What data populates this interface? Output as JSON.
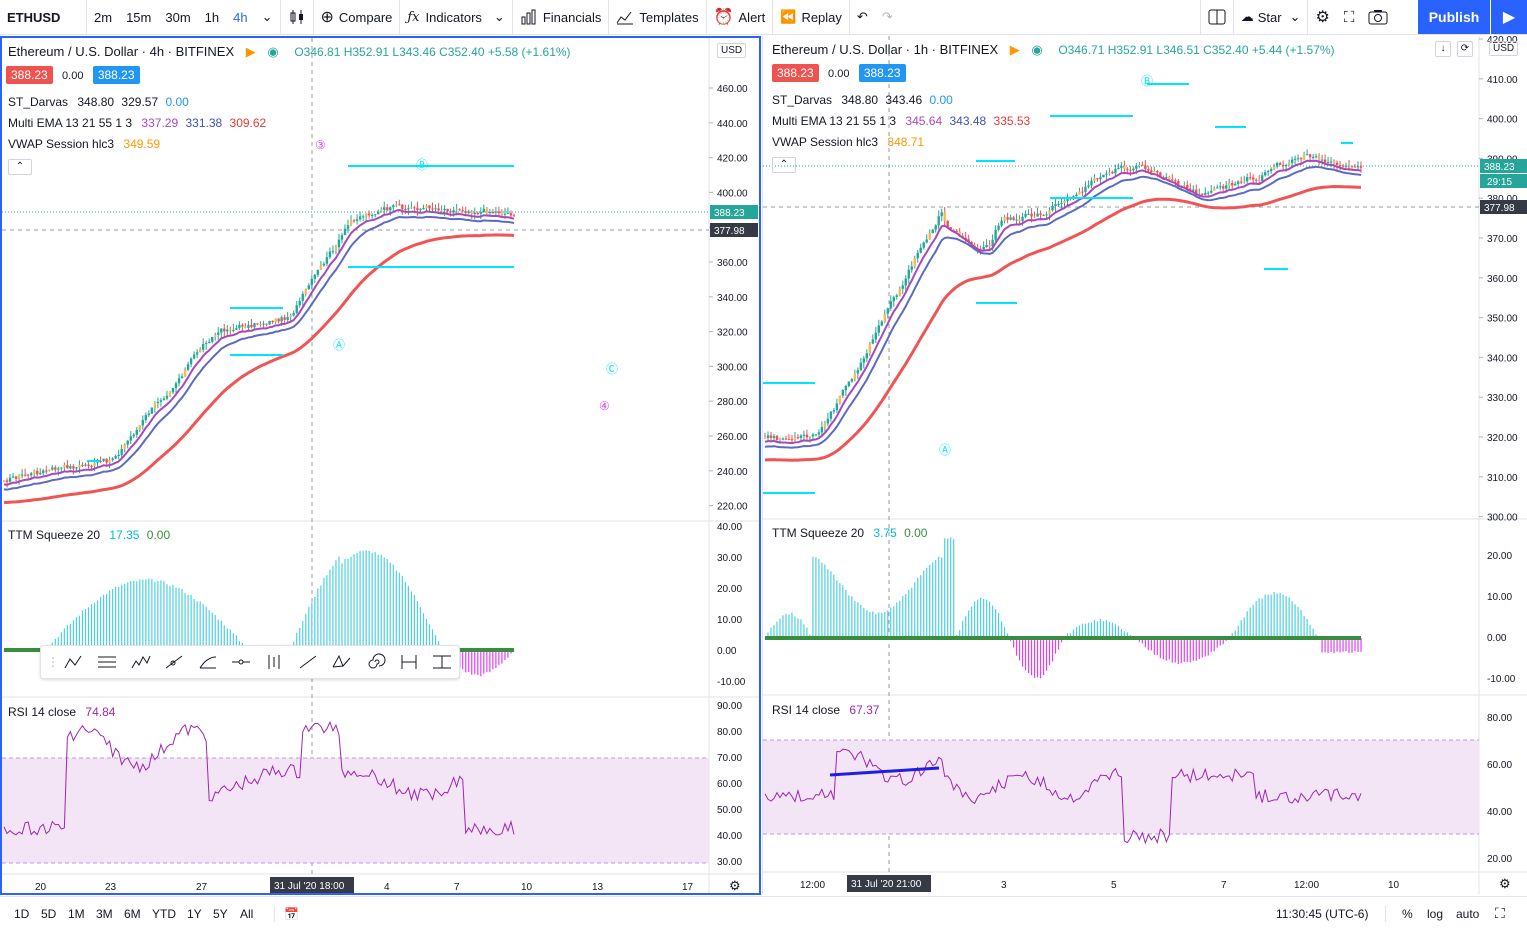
{
  "topbar": {
    "symbol": "ETHUSD",
    "intervals": [
      "2m",
      "15m",
      "30m",
      "1h",
      "4h"
    ],
    "active_interval": "4h",
    "compare": "Compare",
    "indicators": "Indicators",
    "financials": "Financials",
    "templates": "Templates",
    "alert": "Alert",
    "replay": "Replay",
    "layout_name": "Star",
    "publish": "Publish"
  },
  "left": {
    "title": "Ethereum / U.S. Dollar · 4h · BITFINEX",
    "ohlc": "O346.81 H352.91 L343.46 C352.40 +5.58 (+1.61%)",
    "bid": "388.23",
    "spread": "0.00",
    "ask": "388.23",
    "darvas": {
      "label": "ST_Darvas",
      "v1": "348.80",
      "v2": "329.57",
      "v3": "0.00"
    },
    "ema": {
      "label": "Multi EMA 13 21 55 1 3",
      "v1": "337.29",
      "v2": "331.38",
      "v3": "309.62"
    },
    "vwap": {
      "label": "VWAP Session hlc3",
      "v1": "349.59"
    },
    "currency": "USD",
    "price_ticks": [
      "460.00",
      "440.00",
      "420.00",
      "400.00",
      "380.00",
      "360.00",
      "340.00",
      "320.00",
      "300.00",
      "280.00",
      "260.00",
      "240.00",
      "220.00"
    ],
    "last_price": "388.23",
    "crosshair_price": "377.98",
    "squeeze": {
      "label": "TTM Squeeze 20",
      "v1": "17.35",
      "v2": "0.00"
    },
    "squeeze_ticks": [
      "40.00",
      "30.00",
      "20.00",
      "10.00",
      "0.00",
      "-10.00"
    ],
    "rsi": {
      "label": "RSI 14 close",
      "v1": "74.84"
    },
    "rsi_ticks": [
      "90.00",
      "80.00",
      "70.00",
      "60.00",
      "50.00",
      "40.00",
      "30.00"
    ],
    "time_ticks": [
      "20",
      "23",
      "27",
      "4",
      "7",
      "10",
      "13",
      "17"
    ],
    "crosshair_date": "31 Jul '20",
    "crosshair_time": "18:00",
    "wave_labels": [
      "③",
      "Ⓑ",
      "Ⓐ",
      "Ⓒ",
      "④"
    ]
  },
  "right": {
    "title": "Ethereum / U.S. Dollar · 1h · BITFINEX",
    "ohlc": "O346.71 H352.91 L346.51 C352.40 +5.44 (+1.57%)",
    "bid": "388.23",
    "spread": "0.00",
    "ask": "388.23",
    "darvas": {
      "label": "ST_Darvas",
      "v1": "348.80",
      "v2": "343.46",
      "v3": "0.00"
    },
    "ema": {
      "label": "Multi EMA 13 21 55 1 3",
      "v1": "345.64",
      "v2": "343.48",
      "v3": "335.53"
    },
    "vwap": {
      "label": "VWAP Session hlc3",
      "v1": "348.71"
    },
    "currency": "USD",
    "price_ticks": [
      "420.00",
      "410.00",
      "400.00",
      "390.00",
      "380.00",
      "370.00",
      "360.00",
      "350.00",
      "340.00",
      "330.00",
      "320.00",
      "310.00",
      "300.00"
    ],
    "last_price": "388.23",
    "countdown": "29:15",
    "crosshair_price": "377.98",
    "squeeze": {
      "label": "TTM Squeeze 20",
      "v1": "3.75",
      "v2": "0.00"
    },
    "squeeze_ticks": [
      "20.00",
      "10.00",
      "0.00",
      "-10.00"
    ],
    "rsi": {
      "label": "RSI 14 close",
      "v1": "67.37"
    },
    "rsi_ticks": [
      "80.00",
      "60.00",
      "40.00",
      "20.00"
    ],
    "time_ticks": [
      "12:00",
      "3",
      "5",
      "7",
      "12:00",
      "10"
    ],
    "crosshair_date": "31 Jul '20",
    "crosshair_time": "21:00",
    "wave_labels": [
      "Ⓑ",
      "Ⓐ"
    ]
  },
  "bottombar": {
    "ranges": [
      "1D",
      "5D",
      "1M",
      "3M",
      "6M",
      "YTD",
      "1Y",
      "5Y",
      "All"
    ],
    "clock": "11:30:45 (UTC-6)",
    "percent": "%",
    "log": "log",
    "auto": "auto"
  },
  "colors": {
    "accent": "#2962ff",
    "red_box": "#ef5350",
    "blue_box": "#2196f3",
    "ema_fast": "#ab47bc",
    "ema_mid": "#5c6bc0",
    "ema_slow": "#f05454",
    "darvas": "#00e5ff",
    "vwap": "#ffb74d",
    "rsi_line": "#9c27b0",
    "rsi_band": "#f3e5f5",
    "squeeze_pos": "#4dd0e1",
    "squeeze_neg": "#e040fb",
    "squeeze_zero": "#388e3c"
  }
}
